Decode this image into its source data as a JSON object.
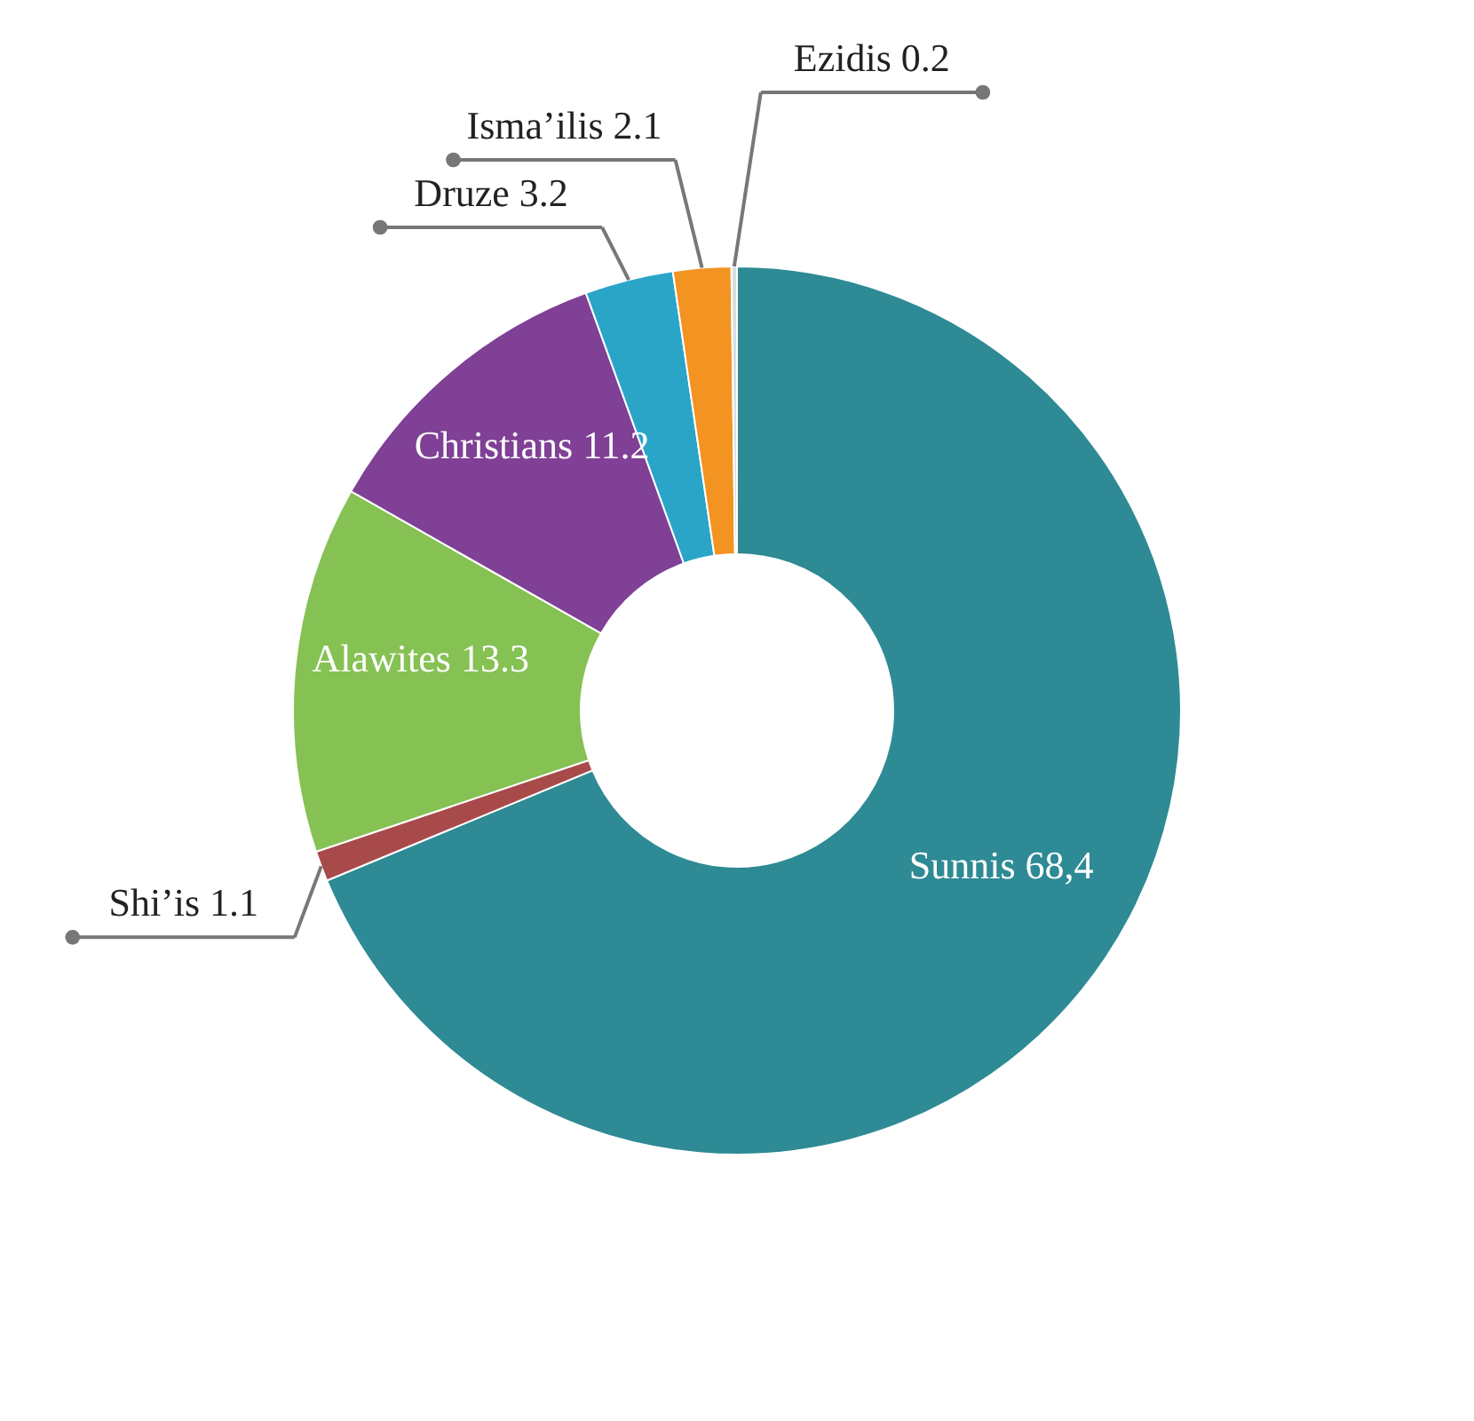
{
  "chart_data": {
    "type": "donut",
    "categories": [
      "Sunnis",
      "Shi’is",
      "Alawites",
      "Christians",
      "Druze",
      "Isma’ilis",
      "Ezidis"
    ],
    "values": [
      68.4,
      1.1,
      13.3,
      11.2,
      3.2,
      2.1,
      0.2
    ],
    "value_labels": [
      "68,4",
      "1.1",
      "13.3",
      "11.2",
      "3.2",
      "2.1",
      "0.2"
    ],
    "colors": [
      "#2e8a94",
      "#a84a4a",
      "#86c154",
      "#7f4096",
      "#2aa5c8",
      "#f39322",
      "#d8dde0"
    ]
  }
}
